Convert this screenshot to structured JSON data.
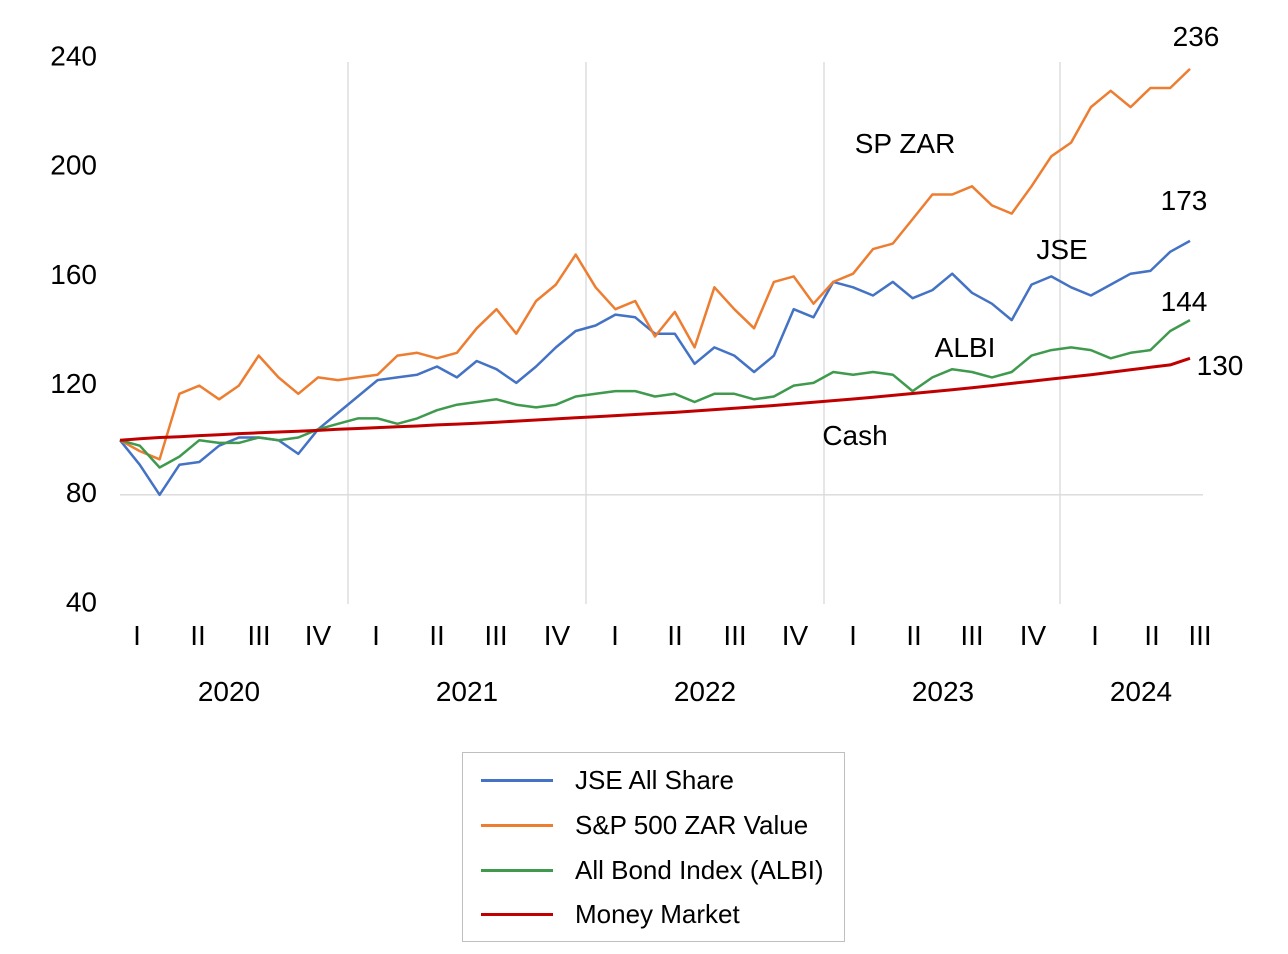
{
  "chart_data": {
    "type": "line",
    "title": "",
    "xlabel": "",
    "ylabel": "",
    "ylim": [
      40,
      240
    ],
    "y_ticks": [
      40,
      80,
      120,
      160,
      200,
      240
    ],
    "grid": "vertical lines at year boundaries, horizontal line at 80",
    "legend_position": "bottom",
    "x_axis": {
      "quarter_labels": [
        "I",
        "II",
        "III",
        "IV",
        "I",
        "II",
        "III",
        "IV",
        "I",
        "II",
        "III",
        "IV",
        "I",
        "II",
        "III",
        "IV",
        "I",
        "II",
        "III"
      ],
      "year_labels": [
        "2020",
        "2021",
        "2022",
        "2023",
        "2024"
      ]
    },
    "x": [
      "2020-01",
      "2020-02",
      "2020-03",
      "2020-04",
      "2020-05",
      "2020-06",
      "2020-07",
      "2020-08",
      "2020-09",
      "2020-10",
      "2020-11",
      "2020-12",
      "2021-01",
      "2021-02",
      "2021-03",
      "2021-04",
      "2021-05",
      "2021-06",
      "2021-07",
      "2021-08",
      "2021-09",
      "2021-10",
      "2021-11",
      "2021-12",
      "2022-01",
      "2022-02",
      "2022-03",
      "2022-04",
      "2022-05",
      "2022-06",
      "2022-07",
      "2022-08",
      "2022-09",
      "2022-10",
      "2022-11",
      "2022-12",
      "2023-01",
      "2023-02",
      "2023-03",
      "2023-04",
      "2023-05",
      "2023-06",
      "2023-07",
      "2023-08",
      "2023-09",
      "2023-10",
      "2023-11",
      "2023-12",
      "2024-01",
      "2024-02",
      "2024-03",
      "2024-04",
      "2024-05",
      "2024-06",
      "2024-07"
    ],
    "series": [
      {
        "name": "JSE All Share",
        "color": "#4472c4",
        "values": [
          100,
          91,
          80,
          91,
          92,
          98,
          101,
          101,
          100,
          95,
          104,
          110,
          116,
          122,
          123,
          124,
          127,
          123,
          129,
          126,
          121,
          127,
          134,
          140,
          142,
          146,
          145,
          139,
          139,
          128,
          134,
          131,
          125,
          131,
          148,
          145,
          158,
          156,
          153,
          158,
          152,
          155,
          161,
          154,
          150,
          144,
          157,
          160,
          156,
          153,
          157,
          161,
          162,
          169,
          173
        ]
      },
      {
        "name": "S&P 500 ZAR Value",
        "color": "#ed7d31",
        "values": [
          100,
          96,
          93,
          117,
          120,
          115,
          120,
          131,
          123,
          117,
          123,
          122,
          123,
          124,
          131,
          132,
          130,
          132,
          141,
          148,
          139,
          151,
          157,
          168,
          156,
          148,
          151,
          138,
          147,
          134,
          156,
          148,
          141,
          158,
          160,
          150,
          158,
          161,
          170,
          172,
          181,
          190,
          190,
          193,
          186,
          183,
          193,
          204,
          209,
          222,
          228,
          222,
          229,
          229,
          236
        ]
      },
      {
        "name": "All Bond Index (ALBI)",
        "color": "#3f9a4e",
        "values": [
          100,
          98,
          90,
          94,
          100,
          99,
          99,
          101,
          100,
          101,
          104,
          106,
          108,
          108,
          106,
          108,
          111,
          113,
          114,
          115,
          113,
          112,
          113,
          116,
          117,
          118,
          118,
          116,
          117,
          114,
          117,
          117,
          115,
          116,
          120,
          121,
          125,
          124,
          125,
          124,
          118,
          123,
          126,
          125,
          123,
          125,
          131,
          133,
          134,
          133,
          130,
          132,
          133,
          140,
          144
        ]
      },
      {
        "name": "Money Market",
        "color": "#c00000",
        "values": [
          100,
          100.5,
          101,
          101.3,
          101.7,
          102,
          102.4,
          102.7,
          103,
          103.3,
          103.6,
          104,
          104.3,
          104.6,
          104.9,
          105.2,
          105.6,
          105.9,
          106.2,
          106.6,
          107,
          107.4,
          107.8,
          108.2,
          108.6,
          109,
          109.4,
          109.8,
          110.2,
          110.7,
          111.2,
          111.7,
          112.2,
          112.7,
          113.3,
          113.9,
          114.5,
          115.1,
          115.7,
          116.4,
          117.1,
          117.8,
          118.5,
          119.2,
          120,
          120.8,
          121.6,
          122.4,
          123.2,
          124,
          124.9,
          125.8,
          126.7,
          127.6,
          130
        ]
      }
    ],
    "annotations": {
      "series_labels": [
        "SP ZAR",
        "JSE",
        "ALBI",
        "Cash"
      ],
      "end_values": [
        "236",
        "173",
        "144",
        "130"
      ]
    }
  },
  "legend": {
    "items": [
      {
        "label": "JSE All Share",
        "color": "#4472c4"
      },
      {
        "label": "S&P 500 ZAR Value",
        "color": "#ed7d31"
      },
      {
        "label": "All Bond Index (ALBI)",
        "color": "#3f9a4e"
      },
      {
        "label": "Money Market",
        "color": "#c00000"
      }
    ]
  }
}
